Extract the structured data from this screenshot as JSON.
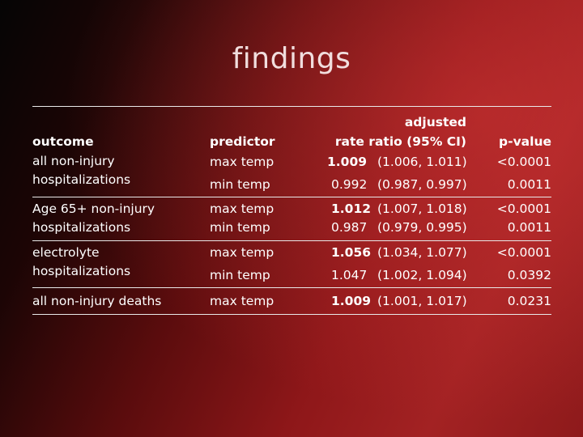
{
  "title": "findings",
  "table": {
    "headers": {
      "outcome": "outcome",
      "predictor": "predictor",
      "rate_line1": "adjusted",
      "rate_line2": "rate ratio (95% CI)",
      "pvalue": "p-value"
    },
    "groups": [
      {
        "outcome": [
          "all non-injury",
          "hospitalizations"
        ],
        "rows": [
          {
            "predictor": "max temp",
            "ratio": "1.009",
            "ci": "(1.006, 1.011)",
            "p": "<0.0001",
            "bold": true
          },
          {
            "predictor": "min temp",
            "ratio": "0.992",
            "ci": "(0.987, 0.997)",
            "p": "0.0011",
            "bold": false
          }
        ]
      },
      {
        "outcome": [
          "Age 65+ non-injury",
          "hospitalizations"
        ],
        "rows": [
          {
            "predictor": "max temp",
            "ratio": "1.012",
            "ci": "(1.007, 1.018)",
            "p": "<0.0001",
            "bold": true
          },
          {
            "predictor": "min temp",
            "ratio": "0.987",
            "ci": "(0.979, 0.995)",
            "p": "0.0011",
            "bold": false
          }
        ]
      },
      {
        "outcome": [
          "electrolyte",
          "hospitalizations"
        ],
        "rows": [
          {
            "predictor": "max temp",
            "ratio": "1.056",
            "ci": "(1.034, 1.077)",
            "p": "<0.0001",
            "bold": true
          },
          {
            "predictor": "min temp",
            "ratio": "1.047",
            "ci": "(1.002, 1.094)",
            "p": "0.0392",
            "bold": false
          }
        ]
      },
      {
        "outcome": [
          "all non-injury deaths"
        ],
        "rows": [
          {
            "predictor": "max temp",
            "ratio": "1.009",
            "ci": "(1.001, 1.017)",
            "p": "0.0231",
            "bold": true
          }
        ]
      }
    ]
  }
}
